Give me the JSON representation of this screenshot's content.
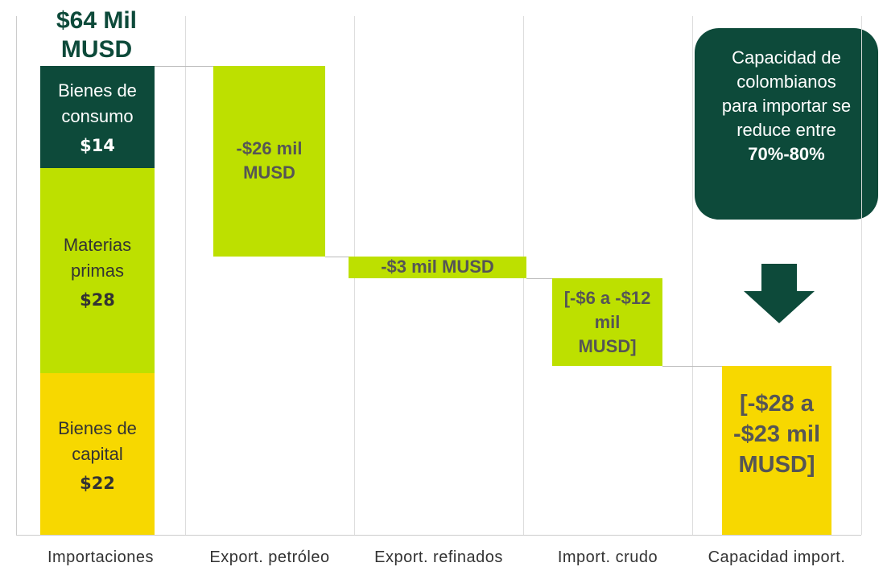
{
  "chart_data": {
    "type": "waterfall",
    "total_label": "$64 Mil MUSD",
    "total": 64,
    "categories": [
      "Importaciones",
      "Export. petróleo",
      "Export. refinados",
      "Import. crudo",
      "Capacidad import."
    ],
    "stack": [
      {
        "name": "Bienes de capital",
        "value": 22,
        "value_label": "$22",
        "color": "#f7d800"
      },
      {
        "name": "Materias primas",
        "value": 28,
        "value_label": "$28",
        "color": "#bde000"
      },
      {
        "name": "Bienes de consumo",
        "value": 14,
        "value_label": "$14",
        "color": "#0d4a3a"
      }
    ],
    "steps": [
      {
        "values": [
          -26
        ],
        "label": "-$26 mil MUSD",
        "color": "#bde000"
      },
      {
        "values": [
          -3
        ],
        "label": "-$3 mil MUSD",
        "color": "#bde000"
      },
      {
        "values": [
          -6,
          -12
        ],
        "label": "[-$6 a -$12 mil MUSD]",
        "color": "#bde000"
      }
    ],
    "result": {
      "values": [
        -28,
        -23
      ],
      "label": "[-$28 a -$23 mil MUSD]",
      "color": "#f7d800"
    },
    "callout": {
      "text": "Capacidad de colombianos para importar se reduce entre ",
      "bold": "70%-80%"
    },
    "ylim": [
      0,
      70
    ]
  }
}
